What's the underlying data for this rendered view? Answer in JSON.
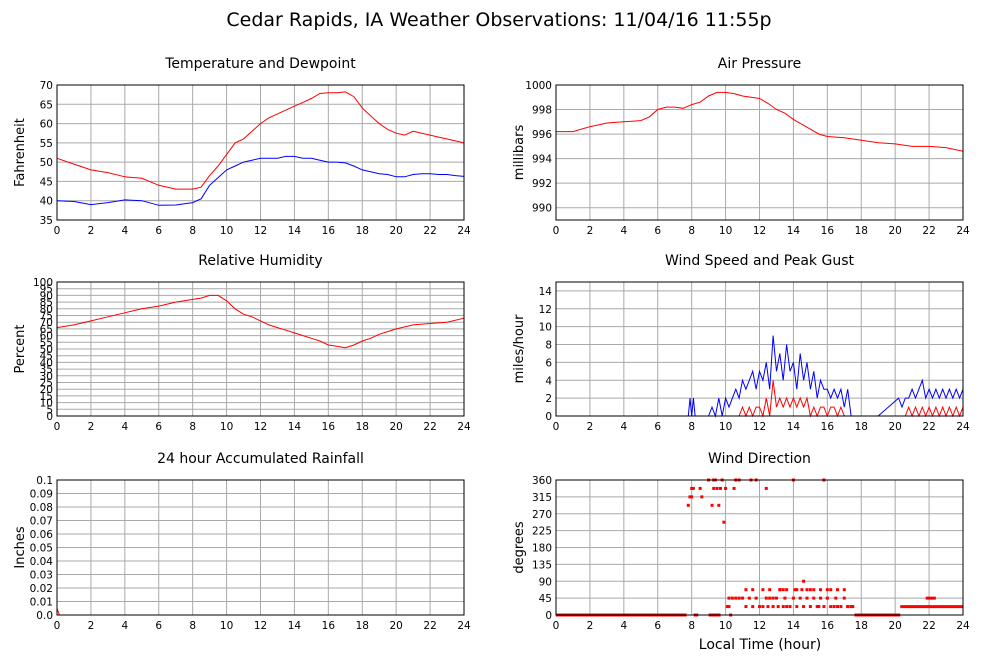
{
  "title": "Cedar Rapids, IA Weather Observations: 11/04/16 11:55p",
  "xlabel": "Local Time (hour)",
  "colors": {
    "red": "#ff0000",
    "blue": "#0000ff",
    "grid": "#a9a9a9"
  },
  "chart_data": [
    {
      "id": "temp",
      "type": "line",
      "title": "Temperature and Dewpoint",
      "xlabel": "",
      "ylabel": "Fahrenheit",
      "xlim": [
        0,
        24
      ],
      "ylim": [
        35,
        70
      ],
      "xticks": [
        "0",
        "2",
        "4",
        "6",
        "8",
        "10",
        "12",
        "14",
        "16",
        "18",
        "20",
        "22",
        "24"
      ],
      "yticks": [
        "35",
        "40",
        "45",
        "50",
        "55",
        "60",
        "65",
        "70"
      ],
      "x": [
        0,
        1,
        2,
        3,
        4,
        5,
        6,
        7,
        8,
        8.5,
        9,
        9.5,
        10,
        10.5,
        11,
        11.5,
        12,
        12.5,
        13,
        13.5,
        14,
        14.5,
        15,
        15.5,
        16,
        16.5,
        17,
        17.5,
        18,
        18.5,
        19,
        19.5,
        20,
        20.5,
        21,
        21.5,
        22,
        22.5,
        23,
        23.5,
        24
      ],
      "series": [
        {
          "color": "#ff0000",
          "values": [
            51,
            49.5,
            48,
            47.3,
            46.2,
            45.8,
            44,
            43,
            43,
            43.5,
            46.5,
            49,
            52,
            55,
            56,
            58,
            60,
            61.5,
            62.5,
            63.5,
            64.5,
            65.5,
            66.5,
            67.8,
            68,
            68,
            68.2,
            67,
            64,
            62,
            60,
            58.5,
            57.5,
            57,
            58,
            57.5,
            57,
            56.5,
            56,
            55.5,
            55
          ]
        },
        {
          "color": "#0000ff",
          "values": [
            40,
            39.8,
            39,
            39.5,
            40.2,
            40,
            38.8,
            38.9,
            39.5,
            40.5,
            44,
            46,
            48,
            49,
            50,
            50.5,
            51,
            51,
            51,
            51.5,
            51.5,
            51,
            51,
            50.5,
            50,
            50,
            49.8,
            49,
            48,
            47.5,
            47,
            46.8,
            46.2,
            46.2,
            46.8,
            47,
            47,
            46.8,
            46.8,
            46.5,
            46.3
          ]
        }
      ]
    },
    {
      "id": "pressure",
      "type": "line",
      "title": "Air Pressure",
      "xlabel": "",
      "ylabel": "millibars",
      "xlim": [
        0,
        24
      ],
      "ylim": [
        989,
        1000
      ],
      "xticks": [
        "0",
        "2",
        "4",
        "6",
        "8",
        "10",
        "12",
        "14",
        "16",
        "18",
        "20",
        "22",
        "24"
      ],
      "yticks": [
        "990",
        "992",
        "994",
        "996",
        "998",
        "1000"
      ],
      "x": [
        0,
        1,
        2,
        3,
        4,
        5,
        5.5,
        6,
        6.5,
        7,
        7.5,
        8,
        8.5,
        9,
        9.5,
        10,
        10.5,
        11,
        11.5,
        12,
        12.5,
        13,
        13.5,
        14,
        14.5,
        15,
        15.5,
        16,
        17,
        18,
        19,
        20,
        21,
        22,
        23,
        24
      ],
      "series": [
        {
          "color": "#ff0000",
          "values": [
            996.2,
            996.2,
            996.6,
            996.9,
            997,
            997.1,
            997.4,
            998,
            998.2,
            998.2,
            998.1,
            998.4,
            998.6,
            999.1,
            999.4,
            999.4,
            999.3,
            999.1,
            999,
            998.9,
            998.5,
            998,
            997.7,
            997.2,
            996.8,
            996.4,
            996,
            995.8,
            995.7,
            995.5,
            995.3,
            995.2,
            995,
            995,
            994.9,
            994.6
          ]
        }
      ]
    },
    {
      "id": "humidity",
      "type": "line",
      "title": "Relative Humidity",
      "xlabel": "",
      "ylabel": "Percent",
      "xlim": [
        0,
        24
      ],
      "ylim": [
        0,
        100
      ],
      "xticks": [
        "0",
        "2",
        "4",
        "6",
        "8",
        "10",
        "12",
        "14",
        "16",
        "18",
        "20",
        "22",
        "24"
      ],
      "yticks": [
        "0",
        "5",
        "10",
        "15",
        "20",
        "25",
        "30",
        "35",
        "40",
        "45",
        "50",
        "55",
        "60",
        "65",
        "70",
        "75",
        "80",
        "85",
        "90",
        "95",
        "100"
      ],
      "x": [
        0,
        1,
        2,
        3,
        4,
        5,
        6,
        7,
        8,
        8.5,
        9,
        9.5,
        10,
        10.5,
        11,
        11.5,
        12,
        12.5,
        13,
        13.5,
        14,
        14.5,
        15,
        15.5,
        16,
        16.5,
        17,
        17.5,
        18,
        18.5,
        19,
        19.5,
        20,
        21,
        22,
        23,
        24
      ],
      "series": [
        {
          "color": "#ff0000",
          "values": [
            66,
            68,
            71,
            74,
            77,
            80,
            82,
            85,
            87,
            88,
            90,
            90,
            86,
            80,
            76,
            74,
            71,
            68,
            66,
            64,
            62,
            60,
            58,
            56,
            53,
            52,
            51,
            53,
            56,
            58,
            61,
            63,
            65,
            68,
            69,
            70,
            73
          ]
        }
      ]
    },
    {
      "id": "wind",
      "type": "line",
      "title": "Wind Speed and Peak Gust",
      "xlabel": "",
      "ylabel": "miles/hour",
      "xlim": [
        0,
        24
      ],
      "ylim": [
        0,
        15
      ],
      "xticks": [
        "0",
        "2",
        "4",
        "6",
        "8",
        "10",
        "12",
        "14",
        "16",
        "18",
        "20",
        "22",
        "24"
      ],
      "yticks": [
        "0",
        "2",
        "4",
        "6",
        "8",
        "10",
        "12",
        "14"
      ],
      "x": [
        0,
        7.8,
        7.9,
        8.0,
        8.1,
        8.2,
        8.5,
        9.0,
        9.2,
        9.4,
        9.6,
        9.8,
        10.0,
        10.2,
        10.4,
        10.6,
        10.8,
        11.0,
        11.2,
        11.4,
        11.6,
        11.8,
        12.0,
        12.2,
        12.4,
        12.6,
        12.8,
        13.0,
        13.2,
        13.4,
        13.6,
        13.8,
        14.0,
        14.2,
        14.4,
        14.6,
        14.8,
        15.0,
        15.2,
        15.4,
        15.6,
        15.8,
        16.0,
        16.2,
        16.4,
        16.6,
        16.8,
        17.0,
        17.2,
        17.4,
        17.6,
        18,
        19,
        20.2,
        20.4,
        20.6,
        20.8,
        21.0,
        21.2,
        21.4,
        21.6,
        21.8,
        22.0,
        22.2,
        22.4,
        22.6,
        22.8,
        23.0,
        23.2,
        23.4,
        23.6,
        23.8,
        24
      ],
      "series": [
        {
          "color": "#0000ff",
          "values": [
            0,
            0,
            2,
            0,
            2,
            0,
            0,
            0,
            1,
            0,
            2,
            0,
            2,
            1,
            2,
            3,
            2,
            4,
            3,
            4,
            5,
            3,
            5,
            4,
            6,
            3,
            9,
            5,
            7,
            4,
            8,
            5,
            6,
            3,
            7,
            4,
            6,
            3,
            5,
            2,
            4,
            3,
            3,
            2,
            3,
            2,
            3,
            1,
            3,
            0,
            0,
            0,
            0,
            2,
            1,
            2,
            2,
            3,
            2,
            3,
            4,
            2,
            3,
            2,
            3,
            2,
            3,
            2,
            3,
            2,
            3,
            2,
            3
          ]
        },
        {
          "color": "#ff0000",
          "values": [
            0,
            0,
            0,
            0,
            0,
            0,
            0,
            0,
            0,
            0,
            0,
            0,
            0,
            0,
            0,
            0,
            0,
            1,
            0,
            1,
            0,
            1,
            1,
            0,
            2,
            0,
            4,
            1,
            2,
            1,
            2,
            1,
            2,
            1,
            2,
            1,
            2,
            0,
            1,
            0,
            1,
            1,
            0,
            1,
            1,
            0,
            1,
            0,
            0,
            0,
            0,
            0,
            0,
            0,
            0,
            0,
            1,
            0,
            1,
            0,
            1,
            0,
            1,
            0,
            1,
            0,
            1,
            0,
            1,
            0,
            1,
            0,
            1
          ]
        }
      ]
    },
    {
      "id": "rain",
      "type": "line",
      "title": "24 hour Accumulated Rainfall",
      "xlabel": "",
      "ylabel": "Inches",
      "xlim": [
        0,
        24
      ],
      "ylim": [
        0,
        0.1
      ],
      "xticks": [
        "0",
        "2",
        "4",
        "6",
        "8",
        "10",
        "12",
        "14",
        "16",
        "18",
        "20",
        "22",
        "24"
      ],
      "yticks": [
        "0.0",
        "0.01",
        "0.02",
        "0.03",
        "0.04",
        "0.05",
        "0.06",
        "0.07",
        "0.08",
        "0.09",
        "0.1"
      ],
      "x": [
        0,
        0.08,
        0.15,
        24
      ],
      "series": [
        {
          "color": "#ff0000",
          "values": [
            0.005,
            0.002,
            0,
            0
          ]
        }
      ]
    },
    {
      "id": "direction",
      "type": "scatter",
      "title": "Wind Direction",
      "xlabel": "Local Time (hour)",
      "ylabel": "degrees",
      "xlim": [
        0,
        24
      ],
      "ylim": [
        0,
        360
      ],
      "xticks": [
        "0",
        "2",
        "4",
        "6",
        "8",
        "10",
        "12",
        "14",
        "16",
        "18",
        "20",
        "22",
        "24"
      ],
      "yticks": [
        "0",
        "45",
        "90",
        "135",
        "180",
        "225",
        "270",
        "315",
        "360"
      ],
      "segments": [
        {
          "x": [
            0,
            7.7
          ],
          "y": 0
        },
        {
          "x": [
            9.0,
            9.7
          ],
          "y": 0
        },
        {
          "x": [
            17.6,
            20.3
          ],
          "y": 0
        },
        {
          "x": [
            20.3,
            24
          ],
          "y": 22.5
        },
        {
          "x": [
            21.8,
            22.4
          ],
          "y": 45
        }
      ],
      "x": [
        7.8,
        7.9,
        8.0,
        8.0,
        8.1,
        8.2,
        8.3,
        8.5,
        8.6,
        9.0,
        9.2,
        9.3,
        9.4,
        9.5,
        9.6,
        9.7,
        9.8,
        9.9,
        10.0,
        10.1,
        10.2,
        10.3,
        10.5,
        10.6,
        10.8,
        11.0,
        11.2,
        11.4,
        11.5,
        11.6,
        11.8,
        12.0,
        12.2,
        12.4,
        12.5,
        12.6,
        12.8,
        13.0,
        13.1,
        13.2,
        13.4,
        13.5,
        13.6,
        13.8,
        14.0,
        14.1,
        14.2,
        14.4,
        14.5,
        14.6,
        14.8,
        15.0,
        15.2,
        15.4,
        15.5,
        15.6,
        15.8,
        16.0,
        16.2,
        16.4,
        16.5,
        16.6,
        16.8,
        17.0,
        17.2,
        17.4,
        17.5,
        10.2,
        10.4,
        10.6,
        10.8,
        11.2,
        11.6,
        12.2,
        12.6,
        13.2,
        13.6,
        14.2,
        14.8,
        15.2,
        15.6,
        16.0,
        16.6,
        17.0,
        11.8,
        12.4,
        12.8,
        13.4,
        14.0,
        14.6,
        15.0,
        15.8,
        16.2,
        17.2,
        9.3
      ],
      "y": [
        292.5,
        315,
        315,
        337.5,
        337.5,
        0,
        0,
        337.5,
        315,
        360,
        292.5,
        337.5,
        360,
        337.5,
        292.5,
        337.5,
        360,
        247.5,
        337.5,
        22.5,
        45,
        0,
        337.5,
        360,
        360,
        45,
        22.5,
        45,
        360,
        22.5,
        45,
        22.5,
        22.5,
        45,
        22.5,
        45,
        22.5,
        45,
        22.5,
        67.5,
        22.5,
        45,
        22.5,
        22.5,
        45,
        67.5,
        22.5,
        45,
        67.5,
        22.5,
        45,
        22.5,
        45,
        22.5,
        22.5,
        45,
        22.5,
        45,
        22.5,
        22.5,
        45,
        22.5,
        22.5,
        45,
        22.5,
        22.5,
        22.5,
        22.5,
        45,
        45,
        45,
        67.5,
        67.5,
        67.5,
        67.5,
        67.5,
        67.5,
        67.5,
        67.5,
        67.5,
        67.5,
        67.5,
        67.5,
        67.5,
        360,
        337.5,
        45,
        67.5,
        360,
        90,
        67.5,
        360,
        67.5,
        22.5,
        360
      ]
    }
  ]
}
